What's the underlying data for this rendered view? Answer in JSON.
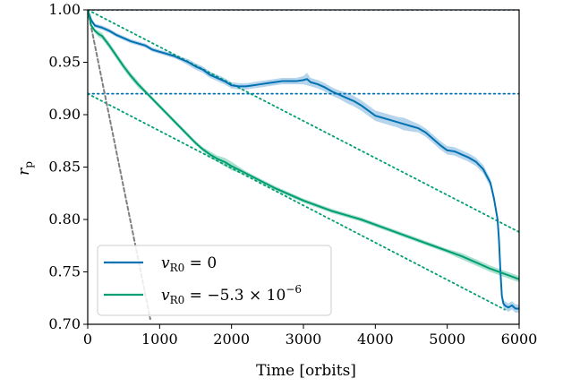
{
  "chart_data": {
    "type": "line",
    "xlabel": "Time [orbits]",
    "ylabel": "r_p",
    "xlim": [
      0,
      6000
    ],
    "ylim": [
      0.7,
      1.0
    ],
    "x_ticks": [
      0,
      1000,
      2000,
      3000,
      4000,
      5000,
      6000
    ],
    "x_tick_labels": [
      "0",
      "1000",
      "2000",
      "3000",
      "4000",
      "5000",
      "6000"
    ],
    "y_ticks": [
      0.7,
      0.75,
      0.8,
      0.85,
      0.9,
      0.95,
      1.0
    ],
    "y_tick_labels": [
      "0.70",
      "0.75",
      "0.80",
      "0.85",
      "0.90",
      "0.95",
      "1.00"
    ],
    "grid": false,
    "legend_position": "lower-left",
    "series": [
      {
        "name": "v_R0 = 0",
        "legend_label": "vR0 = 0",
        "color": "#0072b2",
        "band_color": "#9dc6e6",
        "x": [
          0,
          50,
          100,
          150,
          200,
          300,
          400,
          500,
          600,
          700,
          800,
          900,
          1000,
          1100,
          1200,
          1300,
          1400,
          1500,
          1600,
          1700,
          1800,
          1900,
          2000,
          2100,
          2200,
          2300,
          2400,
          2500,
          2600,
          2700,
          2800,
          2900,
          3000,
          3050,
          3100,
          3200,
          3300,
          3400,
          3500,
          3600,
          3700,
          3800,
          3900,
          4000,
          4100,
          4200,
          4300,
          4400,
          4500,
          4600,
          4700,
          4800,
          4900,
          5000,
          5100,
          5200,
          5300,
          5400,
          5500,
          5600,
          5650,
          5700,
          5720,
          5740,
          5760,
          5780,
          5800,
          5850,
          5900,
          5950,
          6000
        ],
        "y": [
          1.0,
          0.99,
          0.985,
          0.984,
          0.983,
          0.98,
          0.976,
          0.973,
          0.97,
          0.968,
          0.966,
          0.962,
          0.96,
          0.958,
          0.956,
          0.953,
          0.95,
          0.946,
          0.943,
          0.938,
          0.935,
          0.932,
          0.928,
          0.927,
          0.927,
          0.928,
          0.929,
          0.93,
          0.931,
          0.932,
          0.932,
          0.932,
          0.933,
          0.934,
          0.931,
          0.929,
          0.926,
          0.922,
          0.919,
          0.916,
          0.913,
          0.909,
          0.904,
          0.899,
          0.897,
          0.895,
          0.893,
          0.891,
          0.889,
          0.887,
          0.883,
          0.877,
          0.871,
          0.866,
          0.865,
          0.862,
          0.859,
          0.855,
          0.848,
          0.835,
          0.82,
          0.8,
          0.78,
          0.75,
          0.727,
          0.72,
          0.718,
          0.716,
          0.718,
          0.715,
          0.715
        ],
        "spread": [
          0,
          0.002,
          0.002,
          0.002,
          0.002,
          0.002,
          0.002,
          0.002,
          0.002,
          0.002,
          0.002,
          0.002,
          0.002,
          0.002,
          0.002,
          0.002,
          0.003,
          0.003,
          0.003,
          0.003,
          0.003,
          0.003,
          0.003,
          0.003,
          0.003,
          0.003,
          0.003,
          0.003,
          0.003,
          0.003,
          0.003,
          0.003,
          0.004,
          0.006,
          0.004,
          0.004,
          0.004,
          0.004,
          0.004,
          0.005,
          0.005,
          0.005,
          0.005,
          0.005,
          0.005,
          0.005,
          0.005,
          0.006,
          0.005,
          0.004,
          0.004,
          0.004,
          0.004,
          0.004,
          0.004,
          0.004,
          0.004,
          0.004,
          0.004,
          0.004,
          0.004,
          0.004,
          0.004,
          0.004,
          0.004,
          0.004,
          0.004,
          0.004,
          0.004,
          0.004,
          0.004
        ]
      },
      {
        "name": "v_R0 = -5.3 x 10^-6",
        "legend_label": "vR0 = −5.3 × 10−6",
        "color": "#009e73",
        "band_color": "#8fd6bd",
        "x": [
          0,
          50,
          100,
          150,
          200,
          300,
          400,
          500,
          600,
          700,
          800,
          900,
          1000,
          1100,
          1200,
          1300,
          1400,
          1500,
          1600,
          1700,
          1800,
          1900,
          2000,
          2200,
          2400,
          2600,
          2800,
          3000,
          3200,
          3400,
          3600,
          3800,
          4000,
          4200,
          4400,
          4600,
          4800,
          5000,
          5200,
          5400,
          5600,
          5800,
          6000
        ],
        "y": [
          1.0,
          0.985,
          0.98,
          0.977,
          0.975,
          0.966,
          0.956,
          0.946,
          0.937,
          0.929,
          0.922,
          0.915,
          0.908,
          0.901,
          0.894,
          0.887,
          0.88,
          0.873,
          0.867,
          0.862,
          0.858,
          0.855,
          0.851,
          0.844,
          0.837,
          0.83,
          0.824,
          0.818,
          0.813,
          0.808,
          0.804,
          0.8,
          0.795,
          0.79,
          0.785,
          0.78,
          0.775,
          0.77,
          0.765,
          0.759,
          0.753,
          0.748,
          0.743
        ],
        "spread": [
          0,
          0.002,
          0.002,
          0.003,
          0.003,
          0.003,
          0.003,
          0.003,
          0.003,
          0.003,
          0.002,
          0.002,
          0.002,
          0.002,
          0.002,
          0.002,
          0.002,
          0.002,
          0.002,
          0.003,
          0.003,
          0.004,
          0.004,
          0.002,
          0.002,
          0.002,
          0.002,
          0.002,
          0.002,
          0.002,
          0.002,
          0.002,
          0.002,
          0.002,
          0.002,
          0.002,
          0.002,
          0.002,
          0.003,
          0.003,
          0.003,
          0.003,
          0.003
        ]
      }
    ],
    "reference_lines": [
      {
        "style": "dotted",
        "color": "#0072b2",
        "x": [
          0,
          6000
        ],
        "y": [
          1.0,
          1.0
        ]
      },
      {
        "style": "dotted",
        "color": "#0072b2",
        "x": [
          0,
          6000
        ],
        "y": [
          0.92,
          0.92
        ]
      },
      {
        "style": "dotted",
        "color": "#009e73",
        "x": [
          0,
          6000
        ],
        "y": [
          1.0,
          0.788
        ]
      },
      {
        "style": "dotted",
        "color": "#009e73",
        "x": [
          0,
          5800
        ],
        "y": [
          0.92,
          0.714
        ]
      },
      {
        "style": "dotted",
        "color": "#7f7f7f",
        "x": [
          0,
          870
        ],
        "y": [
          1.0,
          0.705
        ]
      }
    ]
  }
}
